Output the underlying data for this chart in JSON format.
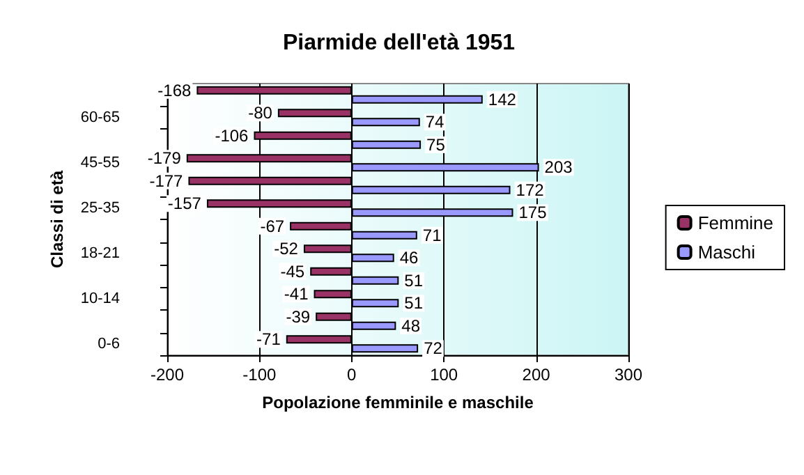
{
  "chart_data": {
    "type": "bar",
    "orientation": "horizontal",
    "title": "Piarmide dell'età 1951",
    "xlabel": "Popolazione femminile e maschile",
    "ylabel": "Classi di età",
    "categories": [
      null,
      "60-65",
      null,
      "45-55",
      null,
      "25-35",
      null,
      "18-21",
      null,
      "10-14",
      null,
      "0-6"
    ],
    "series": [
      {
        "name": "Femmine",
        "color": "#993366",
        "values": [
          -168,
          -80,
          -106,
          -179,
          -177,
          -157,
          -67,
          -52,
          -45,
          -41,
          -39,
          -71
        ]
      },
      {
        "name": "Maschi",
        "color": "#9999ff",
        "values": [
          142,
          74,
          75,
          203,
          172,
          175,
          71,
          46,
          51,
          51,
          48,
          72
        ]
      }
    ],
    "xlim": [
      -200,
      300
    ],
    "xticks": [
      -200,
      -100,
      0,
      100,
      200,
      300
    ],
    "grid": "x",
    "legend": "right",
    "data_labels": true
  }
}
